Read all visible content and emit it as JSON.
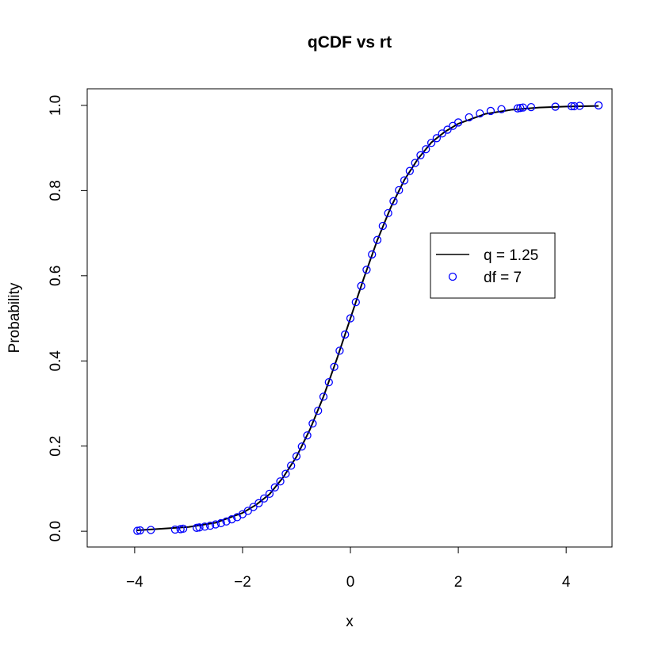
{
  "chart_data": {
    "type": "line",
    "title": "qCDF vs rt",
    "x_label": "x",
    "y_label": "Probability",
    "xlim": [
      -4.88,
      4.85
    ],
    "ylim": [
      -0.037,
      1.039
    ],
    "xticks": [
      {
        "value": -4,
        "label": "−4"
      },
      {
        "value": -2,
        "label": "−2"
      },
      0,
      2,
      4
    ],
    "yticks": [
      {
        "value": 0,
        "label": "0.0"
      },
      0.2,
      0.4,
      0.6,
      0.8,
      {
        "value": 1,
        "label": "1.0"
      }
    ],
    "legend": "right",
    "series": [
      {
        "name": "q = 1.25",
        "color": "#000000",
        "style": "line",
        "x": [
          -3.97,
          -3,
          -2.5,
          -2,
          -1.75,
          -1.5,
          -1.25,
          -1,
          -0.75,
          -0.5,
          -0.25,
          0,
          0.25,
          0.5,
          0.75,
          1,
          1.25,
          1.5,
          1.75,
          2,
          2.5,
          3,
          3.5,
          4,
          4.6
        ],
        "values": [
          0.002,
          0.01,
          0.02,
          0.043,
          0.062,
          0.087,
          0.126,
          0.175,
          0.239,
          0.316,
          0.405,
          0.5,
          0.595,
          0.684,
          0.761,
          0.825,
          0.874,
          0.913,
          0.938,
          0.957,
          0.98,
          0.99,
          0.995,
          0.9974,
          0.9988
        ]
      },
      {
        "name": "df = 7",
        "color": "#0000ff",
        "style": "points",
        "x": [
          -3.95,
          -3.9,
          -3.7,
          -3.25,
          -3.15,
          -3.1,
          -2.85,
          -2.8,
          -2.7,
          -2.6,
          -2.5,
          -2.4,
          -2.3,
          -2.2,
          -2.1,
          -2.0,
          -1.9,
          -1.8,
          -1.7,
          -1.6,
          -1.5,
          -1.4,
          -1.3,
          -1.2,
          -1.1,
          -1.0,
          -0.9,
          -0.8,
          -0.7,
          -0.6,
          -0.5,
          -0.4,
          -0.3,
          -0.2,
          -0.1,
          0,
          0.1,
          0.2,
          0.3,
          0.4,
          0.5,
          0.6,
          0.7,
          0.8,
          0.9,
          1.0,
          1.1,
          1.2,
          1.3,
          1.4,
          1.5,
          1.6,
          1.7,
          1.8,
          1.9,
          2.0,
          2.2,
          2.4,
          2.6,
          2.8,
          3.1,
          3.15,
          3.2,
          3.35,
          3.8,
          4.1,
          4.15,
          4.25,
          4.6
        ],
        "values": [
          0.001,
          0.002,
          0.003,
          0.004,
          0.005,
          0.006,
          0.008,
          0.009,
          0.011,
          0.013,
          0.016,
          0.019,
          0.023,
          0.028,
          0.033,
          0.04,
          0.048,
          0.057,
          0.066,
          0.077,
          0.088,
          0.103,
          0.117,
          0.135,
          0.154,
          0.176,
          0.199,
          0.225,
          0.253,
          0.283,
          0.316,
          0.35,
          0.386,
          0.424,
          0.462,
          0.5,
          0.538,
          0.576,
          0.614,
          0.65,
          0.684,
          0.717,
          0.747,
          0.775,
          0.801,
          0.824,
          0.846,
          0.865,
          0.883,
          0.897,
          0.912,
          0.923,
          0.934,
          0.943,
          0.952,
          0.96,
          0.972,
          0.981,
          0.987,
          0.991,
          0.993,
          0.994,
          0.995,
          0.996,
          0.997,
          0.998,
          0.998,
          0.999,
          1.0
        ]
      }
    ]
  }
}
